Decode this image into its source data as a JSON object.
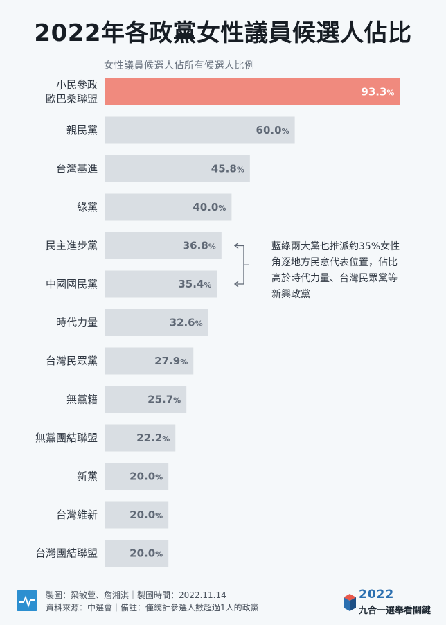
{
  "title": "2022年各政黨女性議員候選人佔比",
  "subtitle": "女性議員候選人佔所有候選人比例",
  "chart_data": {
    "type": "bar",
    "orientation": "horizontal",
    "title": "2022年各政黨女性議員候選人佔比",
    "subtitle": "女性議員候選人佔所有候選人比例",
    "unit": "%",
    "xlim": [
      0,
      100
    ],
    "categories": [
      [
        "小民參政",
        "歐巴桑聯盟"
      ],
      [
        "親民黨"
      ],
      [
        "台灣基進"
      ],
      [
        "綠黨"
      ],
      [
        "民主進步黨"
      ],
      [
        "中國國民黨"
      ],
      [
        "時代力量"
      ],
      [
        "台灣民眾黨"
      ],
      [
        "無黨籍"
      ],
      [
        "無黨團結聯盟"
      ],
      [
        "新黨"
      ],
      [
        "台灣維新"
      ],
      [
        "台灣團結聯盟"
      ]
    ],
    "values": [
      93.3,
      60.0,
      45.8,
      40.0,
      36.8,
      35.4,
      32.6,
      27.9,
      25.7,
      22.2,
      20.0,
      20.0,
      20.0
    ],
    "value_labels": [
      "93.3",
      "60.0",
      "45.8",
      "40.0",
      "36.8",
      "35.4",
      "32.6",
      "27.9",
      "25.7",
      "22.2",
      "20.0",
      "20.0",
      "20.0"
    ],
    "highlight_index": 0,
    "colors": {
      "highlight": "#f08a7e",
      "bar": "#d9dee3",
      "arrow": "#5f6875"
    },
    "annotation": {
      "lines": [
        "藍綠兩大黨也推派約35%女性",
        "角逐地方民意代表位置，佔比",
        "高於時代力量、台灣民眾黨等",
        "新興政黨"
      ],
      "targets": [
        4,
        5
      ]
    }
  },
  "footer": {
    "line1": "製圖：梁敏萱、詹湘淇｜製圖時間：2022.11.14",
    "line2": "資料來源：中選會｜備註：僅統計參選人數超過1人的政黨",
    "icon": "chart-line-icon"
  },
  "logo": {
    "year": "2022",
    "text": "九合一選舉看關鍵",
    "icon": "ballot-box-icon"
  }
}
